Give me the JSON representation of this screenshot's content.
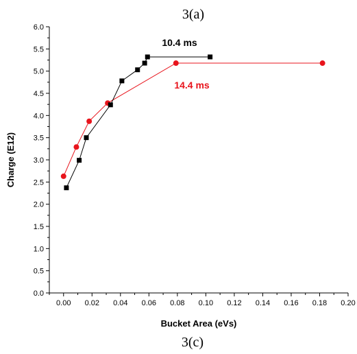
{
  "caption_top": "3(a)",
  "caption_bottom": "3(c)",
  "chart_data": {
    "type": "line",
    "title": "",
    "xlabel": "Bucket Area (eVs)",
    "ylabel": "Charge (E12)",
    "xlim": [
      -0.01,
      0.2
    ],
    "ylim": [
      0.0,
      6.0
    ],
    "x_ticks": [
      "0.00",
      "0.02",
      "0.04",
      "0.06",
      "0.08",
      "0.10",
      "0.12",
      "0.14",
      "0.16",
      "0.18",
      "0.20"
    ],
    "y_ticks": [
      "0.0",
      "0.5",
      "1.0",
      "1.5",
      "2.0",
      "2.5",
      "3.0",
      "3.5",
      "4.0",
      "4.5",
      "5.0",
      "5.5",
      "6.0"
    ],
    "grid": false,
    "series": [
      {
        "name": "10.4 ms",
        "color": "#000000",
        "marker": "square",
        "x": [
          0.002,
          0.011,
          0.016,
          0.033,
          0.041,
          0.052,
          0.057,
          0.059,
          0.103
        ],
        "y": [
          2.37,
          2.99,
          3.5,
          4.24,
          4.78,
          5.03,
          5.18,
          5.32,
          5.32
        ]
      },
      {
        "name": "14.4 ms",
        "color": "#e8141c",
        "marker": "circle",
        "x": [
          0.0,
          0.009,
          0.018,
          0.031,
          0.079,
          0.182
        ],
        "y": [
          2.63,
          3.29,
          3.87,
          4.28,
          5.18,
          5.18
        ]
      }
    ]
  }
}
